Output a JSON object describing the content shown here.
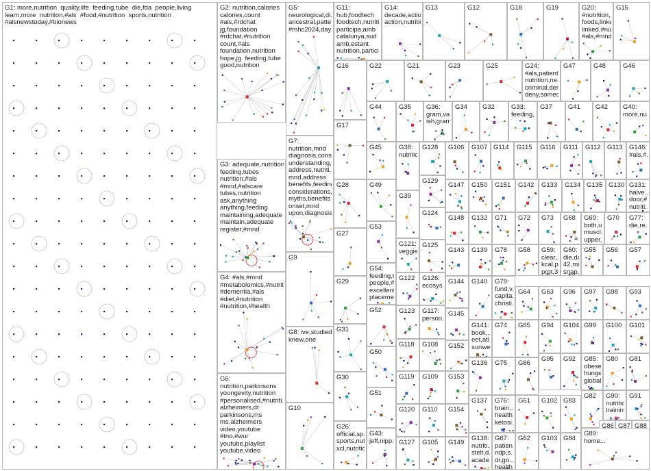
{
  "colors": {
    "node_dark": "#1a1a7a",
    "edge": "#d4d4d4",
    "ring": "#c0c0c0",
    "ring_red": "#e0202a",
    "accents": [
      "#2a6ebb",
      "#e0202a",
      "#27a33a",
      "#f29a1b",
      "#8a2ca0",
      "#1aa3b8",
      "#7a5b2a"
    ]
  },
  "groups": [
    {
      "id": "G1",
      "text": "G1: more,nutrition  quality,life  feeding,tube  die,fda  people,living\nlearn,more  nutrition,#als  #food,#nutrition  sports,nutrition\n#alsnewstoday,#bionews"
    },
    {
      "id": "G2",
      "text": "G2: nutrition,calories\ncalories,count\n#als,#rdchat\njg,foundation\n#rdchat,#nutrition\ncount,#als\nfoundation,nutrition\nhope,jg  feeding,tube\ngood,nutrition"
    },
    {
      "id": "G3",
      "text": "G3: adequate,nutrition\nfeeding,tubes\nnutrition,#als\n#mnd,#alscare\ntubes,nutrition\nask,anything\nanything,feeding\nmaintaining,adequate\nmaintain,adequate\nregister,#mnd"
    },
    {
      "id": "G4",
      "text": "G4: #als,#mnd\n#metabolomics,#nutrit...\n#dementia,#als\n#diet,#nutrition\n#nutrition,#health"
    },
    {
      "id": "G6",
      "text": "G6:\nnutrition,parkinsons\nyoungevity,nutrition\n#personalised,#nutriti...\nalzheimers,dr\nparkinsons,ms\nms,alzheimers\nvideo,youtube\n#tno,#wur\nyoutube,playlist\nyoutube,video"
    },
    {
      "id": "G5",
      "text": "G5:\nneurological,di...\nancestral,patte...\n#mhc2024,day"
    },
    {
      "id": "G7",
      "text": "G7:\nnutrition,mnd\ndiagnosis,cons...\nunderstanding,...\naddress,nutriti...\nmnd,address\nbenefits,feeding\nconsiderations,...\nmyths,benefits\nonset,mnd\nupon,diagnosis"
    },
    {
      "id": "G9",
      "text": "G9"
    },
    {
      "id": "G8",
      "text": "G8: ive,studied\nknew,one"
    },
    {
      "id": "G10",
      "text": "G10"
    },
    {
      "id": "G11",
      "text": "G11:\nhub,foodtech\nfoodtech,nutriti...\nparticipa,amb\ncatalunya,sud\namb,estant\nnutrition,partici..."
    },
    {
      "id": "G14",
      "text": "G14:\ndecade,action\naction,nutrition"
    },
    {
      "id": "G13",
      "text": "G13"
    },
    {
      "id": "G12",
      "text": "G12"
    },
    {
      "id": "G18",
      "text": "G18"
    },
    {
      "id": "G19",
      "text": "G19"
    },
    {
      "id": "G20",
      "text": "G20:\n#nutrition,...\nfoods,linked\nlinked,#nu...\n#als,#mnd"
    },
    {
      "id": "G15",
      "text": "G15"
    },
    {
      "id": "G16",
      "text": "G16"
    },
    {
      "id": "G22",
      "text": "G22"
    },
    {
      "id": "G21",
      "text": "G21"
    },
    {
      "id": "G23",
      "text": "G23"
    },
    {
      "id": "G25",
      "text": "G25"
    },
    {
      "id": "G24",
      "text": "G24:\n#als,patient\nnutrition,ne...\ncriminal,deny\ndeny,someo..."
    },
    {
      "id": "G47",
      "text": "G47"
    },
    {
      "id": "G48",
      "text": "G48"
    },
    {
      "id": "G46",
      "text": "G46"
    },
    {
      "id": "G17",
      "text": "G17"
    },
    {
      "id": "G44",
      "text": "G44"
    },
    {
      "id": "G35",
      "text": "G35"
    },
    {
      "id": "G36",
      "text": "G36:\ngram,va...\nish,gram"
    },
    {
      "id": "G34",
      "text": "G34"
    },
    {
      "id": "G32",
      "text": "G32"
    },
    {
      "id": "G33",
      "text": "G33:\nfeeding,..."
    },
    {
      "id": "G37",
      "text": "G37"
    },
    {
      "id": "G41",
      "text": "G41"
    },
    {
      "id": "G42",
      "text": "G42"
    },
    {
      "id": "G40",
      "text": "G40:\nmore,nu..."
    },
    {
      "id": "G45",
      "text": "G45"
    },
    {
      "id": "G38",
      "text": "G38:\nnutritio..."
    },
    {
      "id": "G128",
      "text": "G128"
    },
    {
      "id": "G106",
      "text": "G106"
    },
    {
      "id": "G107",
      "text": "G107"
    },
    {
      "id": "G114",
      "text": "G114"
    },
    {
      "id": "G115",
      "text": "G115"
    },
    {
      "id": "G116",
      "text": "G116"
    },
    {
      "id": "G111",
      "text": "G111"
    },
    {
      "id": "G112",
      "text": "G112"
    },
    {
      "id": "G113",
      "text": "G113"
    },
    {
      "id": "G146",
      "text": "G146:\n#als,#..."
    },
    {
      "id": "G28",
      "text": "G28"
    },
    {
      "id": "G49",
      "text": "G49"
    },
    {
      "id": "G39",
      "text": "G39"
    },
    {
      "id": "G129",
      "text": "G129"
    },
    {
      "id": "G147",
      "text": "G147"
    },
    {
      "id": "G150",
      "text": "G150"
    },
    {
      "id": "G151",
      "text": "G151"
    },
    {
      "id": "G142",
      "text": "G142"
    },
    {
      "id": "G133",
      "text": "G133"
    },
    {
      "id": "G134",
      "text": "G134"
    },
    {
      "id": "G135",
      "text": "G135"
    },
    {
      "id": "G130",
      "text": "G130"
    },
    {
      "id": "G131",
      "text": "G131:\nhalve...\ndoor,#...\nnutriti..."
    },
    {
      "id": "G124",
      "text": "G124"
    },
    {
      "id": "G148",
      "text": "G148"
    },
    {
      "id": "G132",
      "text": "G132"
    },
    {
      "id": "G71",
      "text": "G71"
    },
    {
      "id": "G72",
      "text": "G72"
    },
    {
      "id": "G73",
      "text": "G73"
    },
    {
      "id": "G68",
      "text": "G68"
    },
    {
      "id": "G69",
      "text": "G69:\nboth,u...\nmuscl...\nupper,..."
    },
    {
      "id": "G70",
      "text": "G70"
    },
    {
      "id": "G77",
      "text": "G77:\ndie,re..."
    },
    {
      "id": "G27",
      "text": "G27"
    },
    {
      "id": "G53",
      "text": "G53"
    },
    {
      "id": "G121",
      "text": "G121:\nveggie..."
    },
    {
      "id": "G125",
      "text": "G125"
    },
    {
      "id": "G143",
      "text": "G143"
    },
    {
      "id": "G139",
      "text": "G139"
    },
    {
      "id": "G78",
      "text": "G78"
    },
    {
      "id": "G58",
      "text": "G58"
    },
    {
      "id": "G59",
      "text": "G59:\nclear,...\nkcal,p...\nprot,30..."
    },
    {
      "id": "G60",
      "text": "G60:\ndie,da...\n42,mill...\nsnap,..."
    },
    {
      "id": "G55",
      "text": "G55"
    },
    {
      "id": "G56",
      "text": "G56"
    },
    {
      "id": "G57",
      "text": "G57"
    },
    {
      "id": "G29",
      "text": "G29"
    },
    {
      "id": "G54",
      "text": "G54:\nfeeding,t...\npeople,#...\nexcellent...\nplaceme..."
    },
    {
      "id": "G122",
      "text": "G122"
    },
    {
      "id": "G126",
      "text": "G126:\necosys..."
    },
    {
      "id": "G144",
      "text": "G144"
    },
    {
      "id": "G140",
      "text": "G140"
    },
    {
      "id": "G79",
      "text": "G79:\nfund,v...\ncapita...\nchristi..."
    },
    {
      "id": "G64",
      "text": "G64"
    },
    {
      "id": "G63",
      "text": "G63"
    },
    {
      "id": "G96",
      "text": "G96"
    },
    {
      "id": "G97",
      "text": "G97"
    },
    {
      "id": "G98",
      "text": "G98"
    },
    {
      "id": "G93",
      "text": "G93"
    },
    {
      "id": "G52",
      "text": "G52"
    },
    {
      "id": "G123",
      "text": "G123"
    },
    {
      "id": "G117",
      "text": "G117:\nperson..."
    },
    {
      "id": "G145",
      "text": "G145"
    },
    {
      "id": "G31",
      "text": "G31"
    },
    {
      "id": "G141",
      "text": "G141:\nbook,...\neet,atl...\nsunwe..."
    },
    {
      "id": "G74",
      "text": "G74"
    },
    {
      "id": "G65",
      "text": "G65"
    },
    {
      "id": "G94",
      "text": "G94"
    },
    {
      "id": "G104",
      "text": "G104"
    },
    {
      "id": "G99",
      "text": "G99"
    },
    {
      "id": "G100",
      "text": "G100"
    },
    {
      "id": "G101",
      "text": "G101"
    },
    {
      "id": "G50",
      "text": "G50"
    },
    {
      "id": "G118",
      "text": "G118"
    },
    {
      "id": "G108",
      "text": "G108"
    },
    {
      "id": "G152",
      "text": "G152"
    },
    {
      "id": "G136",
      "text": "G136"
    },
    {
      "id": "G75",
      "text": "G75"
    },
    {
      "id": "G66",
      "text": "G66"
    },
    {
      "id": "G95",
      "text": "G95"
    },
    {
      "id": "G92",
      "text": "G92"
    },
    {
      "id": "G85",
      "text": "G85:\nobese...\nhunger...\nglobal,..."
    },
    {
      "id": "G80",
      "text": "G80"
    },
    {
      "id": "G81",
      "text": "G81"
    },
    {
      "id": "G30",
      "text": "G30"
    },
    {
      "id": "G51",
      "text": "G51"
    },
    {
      "id": "G119",
      "text": "G119"
    },
    {
      "id": "G109",
      "text": "G109"
    },
    {
      "id": "G153",
      "text": "G153"
    },
    {
      "id": "G82",
      "text": "G82"
    },
    {
      "id": "G90",
      "text": "G90:\nnutritio...\ntrainin..."
    },
    {
      "id": "G91",
      "text": "G91"
    },
    {
      "id": "G137",
      "text": "G137"
    },
    {
      "id": "G76",
      "text": "G76:\nbrain,...\nhealth...\nketosi..."
    },
    {
      "id": "G61",
      "text": "G61"
    },
    {
      "id": "G102",
      "text": "G102"
    },
    {
      "id": "G83",
      "text": "G83"
    },
    {
      "id": "G120",
      "text": "G120"
    },
    {
      "id": "G110",
      "text": "G110"
    },
    {
      "id": "G154",
      "text": "G154"
    },
    {
      "id": "G86",
      "text": "G86"
    },
    {
      "id": "G87",
      "text": "G87"
    },
    {
      "id": "G88",
      "text": "G88"
    },
    {
      "id": "G26",
      "text": "G26:\nofficial,sp...\nsports,nut...\nxcl,nutrition"
    },
    {
      "id": "G43",
      "text": "G43:\njeff,nipp..."
    },
    {
      "id": "G127",
      "text": "G127"
    },
    {
      "id": "G105",
      "text": "G105"
    },
    {
      "id": "G149",
      "text": "G149"
    },
    {
      "id": "G138",
      "text": "G138:\nnutriti...\nstelt,d...\nacade..."
    },
    {
      "id": "G67",
      "text": "G67:\npatien...\nndp,s...\ndr,go...\nhealth..."
    },
    {
      "id": "G62",
      "text": "G62"
    },
    {
      "id": "G103",
      "text": "G103"
    },
    {
      "id": "G84",
      "text": "G84"
    },
    {
      "id": "G89",
      "text": "G89:\nhome..."
    }
  ]
}
